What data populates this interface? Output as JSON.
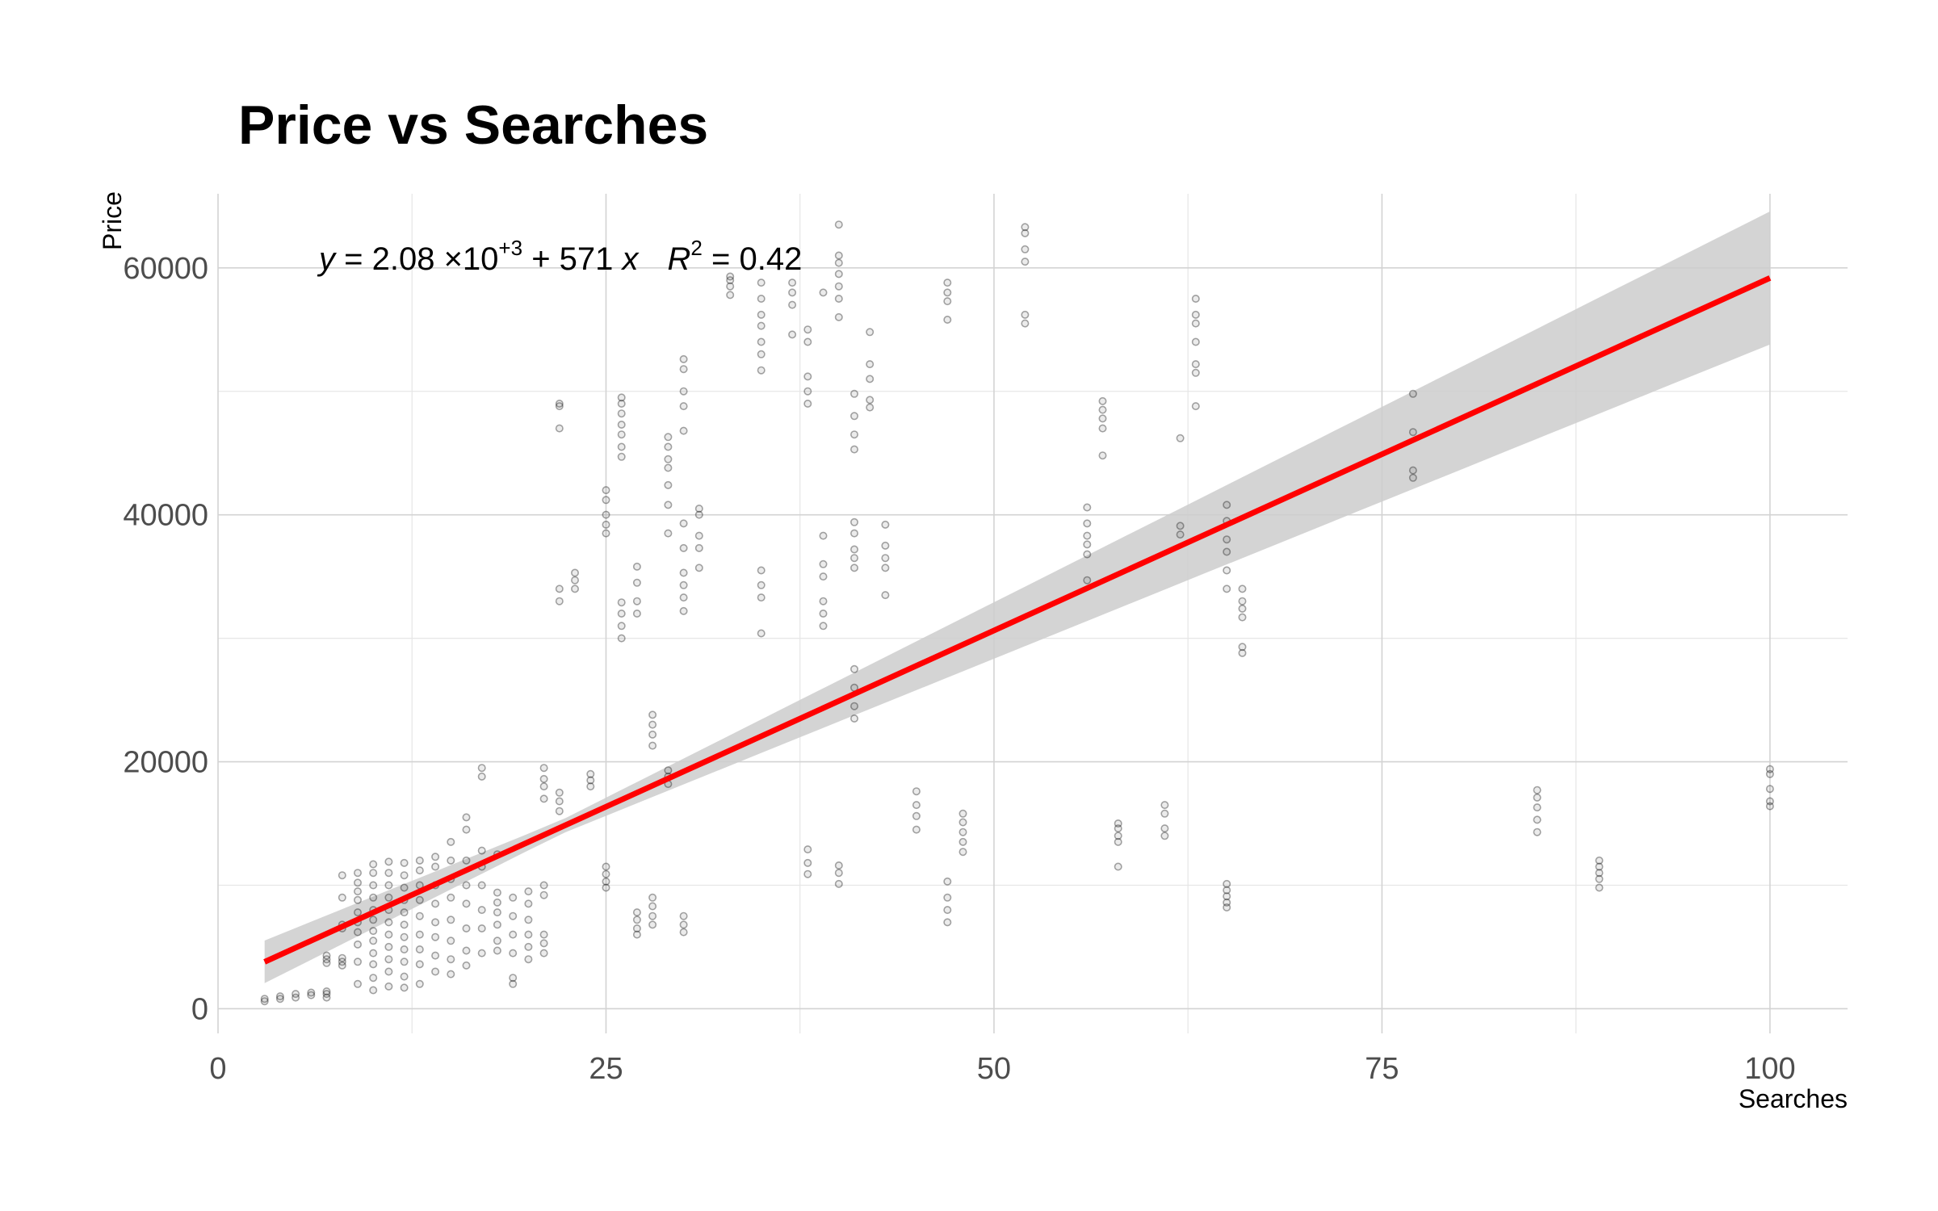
{
  "chart_data": {
    "type": "scatter",
    "title": "Price vs Searches",
    "xlabel": "Searches",
    "ylabel": "Price",
    "xlim": [
      0,
      105
    ],
    "ylim": [
      -2000,
      66000
    ],
    "x_ticks": [
      0,
      25,
      50,
      75,
      100
    ],
    "y_ticks": [
      0,
      20000,
      40000,
      60000
    ],
    "x_tick_labels": [
      "0",
      "25",
      "50",
      "75",
      "100"
    ],
    "y_tick_labels": [
      "0",
      "20000",
      "40000",
      "60000"
    ],
    "grid": true,
    "annotation": {
      "y_var": "y",
      "eq_a": " = 2.08 ",
      "eq_times": "×",
      "eq_ten": "10",
      "eq_exp": "+3",
      "eq_plus": " + ",
      "eq_b": "571 ",
      "x_var": "x",
      "r_var": "R",
      "r_exp": "2",
      "r_val": " = 0.42"
    },
    "fit": {
      "intercept": 2080,
      "slope": 571,
      "x_range": [
        3,
        100
      ],
      "color": "#ff0000",
      "band_color": "#cccccc"
    },
    "point_color": "#000000",
    "groups": [
      {
        "x": 3,
        "y": [
          600,
          800
        ]
      },
      {
        "x": 4,
        "y": [
          800,
          1000
        ]
      },
      {
        "x": 5,
        "y": [
          900,
          1200
        ]
      },
      {
        "x": 6,
        "y": [
          1100,
          1300
        ]
      },
      {
        "x": 7,
        "y": [
          900,
          1200,
          1400
        ]
      },
      {
        "x": 7,
        "y": [
          3700,
          4000,
          4300
        ]
      },
      {
        "x": 8,
        "y": [
          3500,
          3800,
          4100,
          6500,
          6800,
          9000,
          10800
        ]
      },
      {
        "x": 9,
        "y": [
          2000,
          3800,
          5200,
          6200,
          7000,
          7800,
          8800,
          9500,
          10200,
          11000
        ]
      },
      {
        "x": 10,
        "y": [
          1500,
          2500,
          3600,
          4500,
          5500,
          6300,
          7200,
          8000,
          9000,
          10000,
          11000,
          11700
        ]
      },
      {
        "x": 11,
        "y": [
          1800,
          3000,
          4000,
          5000,
          6000,
          7000,
          8000,
          9000,
          10000,
          11000,
          11900
        ]
      },
      {
        "x": 12,
        "y": [
          1700,
          2600,
          3800,
          4800,
          5800,
          6800,
          7800,
          8800,
          9800,
          10800,
          11800
        ]
      },
      {
        "x": 13,
        "y": [
          2000,
          3600,
          4800,
          6000,
          7500,
          8800,
          10000,
          11200,
          12000
        ]
      },
      {
        "x": 14,
        "y": [
          3000,
          4300,
          5800,
          7000,
          8500,
          10000,
          11500,
          12300
        ]
      },
      {
        "x": 15,
        "y": [
          2800,
          4000,
          5500,
          7200,
          9000,
          10500,
          12000,
          13500
        ]
      },
      {
        "x": 16,
        "y": [
          3500,
          4700,
          6500,
          8500,
          10000,
          12000,
          14500,
          15500
        ]
      },
      {
        "x": 17,
        "y": [
          4500,
          6500,
          8000,
          10000,
          11500,
          12800,
          18800,
          19500
        ]
      },
      {
        "x": 18,
        "y": [
          4700,
          5500,
          6800,
          7800,
          8600,
          9400,
          12500
        ]
      },
      {
        "x": 19,
        "y": [
          2000,
          2500,
          4500,
          6000,
          7500,
          9000
        ]
      },
      {
        "x": 20,
        "y": [
          4000,
          5000,
          6000,
          7200,
          8500,
          9500
        ]
      },
      {
        "x": 21,
        "y": [
          4500,
          5300,
          6000,
          9200,
          10000,
          17000,
          18000,
          18600,
          19500
        ]
      },
      {
        "x": 22,
        "y": [
          16000,
          16800,
          17500,
          33000,
          34000,
          47000,
          48800,
          49000
        ]
      },
      {
        "x": 23,
        "y": [
          34000,
          34700,
          35300
        ]
      },
      {
        "x": 24,
        "y": [
          18000,
          18500,
          19000
        ]
      },
      {
        "x": 25,
        "y": [
          9800,
          10300,
          10900,
          11500,
          38500,
          39200,
          40000,
          41200,
          42000
        ]
      },
      {
        "x": 26,
        "y": [
          30000,
          31000,
          32000,
          32900,
          44700,
          45500,
          46500,
          47300,
          48200,
          49000,
          49500
        ]
      },
      {
        "x": 27,
        "y": [
          6000,
          6500,
          7200,
          7800,
          32000,
          33000,
          34500,
          35800
        ]
      },
      {
        "x": 28,
        "y": [
          6800,
          7500,
          8300,
          9000,
          21300,
          22200,
          23000,
          23800
        ]
      },
      {
        "x": 29,
        "y": [
          18200,
          18800,
          19300,
          38500,
          40800,
          42400,
          43800,
          44500,
          45500,
          46300
        ]
      },
      {
        "x": 30,
        "y": [
          6200,
          6800,
          7500,
          32200,
          33300,
          34300,
          35300,
          37300,
          39300,
          46800,
          48800,
          50000,
          51800,
          52600
        ]
      },
      {
        "x": 31,
        "y": [
          35700,
          37300,
          38300,
          40000,
          40500
        ]
      },
      {
        "x": 33,
        "y": [
          57800,
          58500,
          59000,
          59300
        ]
      },
      {
        "x": 35,
        "y": [
          30400,
          33300,
          34300,
          35500,
          51700,
          53000,
          54000,
          55300,
          56200,
          57500,
          58800
        ]
      },
      {
        "x": 37,
        "y": [
          54600,
          57000,
          58000,
          58800
        ]
      },
      {
        "x": 38,
        "y": [
          10900,
          11800,
          12900,
          49000,
          50000,
          51200,
          54000,
          55000
        ]
      },
      {
        "x": 39,
        "y": [
          31000,
          32000,
          33000,
          35000,
          36000,
          38300,
          58000
        ]
      },
      {
        "x": 40,
        "y": [
          10100,
          11000,
          11600,
          56000,
          57500,
          58500,
          59500,
          60400,
          61000,
          63500
        ]
      },
      {
        "x": 41,
        "y": [
          23500,
          24500,
          26000,
          27500,
          35700,
          36500,
          37200,
          38500,
          39400,
          45300,
          46500,
          48000,
          49800
        ]
      },
      {
        "x": 42,
        "y": [
          48700,
          49300,
          51000,
          52200,
          54800
        ]
      },
      {
        "x": 43,
        "y": [
          33500,
          35700,
          36500,
          37500,
          39200
        ]
      },
      {
        "x": 45,
        "y": [
          14500,
          15600,
          16500,
          17600
        ]
      },
      {
        "x": 47,
        "y": [
          7000,
          8000,
          9000,
          10300,
          55800,
          57300,
          58000,
          58800
        ]
      },
      {
        "x": 48,
        "y": [
          12700,
          13500,
          14300,
          15100,
          15800
        ]
      },
      {
        "x": 52,
        "y": [
          55500,
          56200,
          60500,
          61500,
          62800,
          63300
        ]
      },
      {
        "x": 56,
        "y": [
          34700,
          36800,
          37600,
          38300,
          39300,
          40600
        ]
      },
      {
        "x": 57,
        "y": [
          44800,
          47000,
          47800,
          48500,
          49200
        ]
      },
      {
        "x": 58,
        "y": [
          11500,
          13500,
          14000,
          14600,
          15000
        ]
      },
      {
        "x": 61,
        "y": [
          14000,
          14600,
          15800,
          16500
        ]
      },
      {
        "x": 62,
        "y": [
          38400,
          39100,
          46200
        ]
      },
      {
        "x": 63,
        "y": [
          48800,
          51500,
          52200,
          54000,
          55500,
          56200,
          57500
        ]
      },
      {
        "x": 65,
        "y": [
          8200,
          8600,
          9100,
          9600,
          10100,
          34000,
          35500,
          37000,
          38000,
          39500,
          40800
        ]
      },
      {
        "x": 66,
        "y": [
          28800,
          29300,
          31700,
          32400,
          33000,
          34000
        ]
      },
      {
        "x": 77,
        "y": [
          43000,
          43600,
          46700,
          49800
        ]
      },
      {
        "x": 85,
        "y": [
          14300,
          15300,
          16300,
          17100,
          17700
        ]
      },
      {
        "x": 89,
        "y": [
          9800,
          10500,
          11000,
          11500,
          12000
        ]
      },
      {
        "x": 100,
        "y": [
          16400,
          16800,
          17800,
          19000,
          19400
        ]
      }
    ]
  }
}
